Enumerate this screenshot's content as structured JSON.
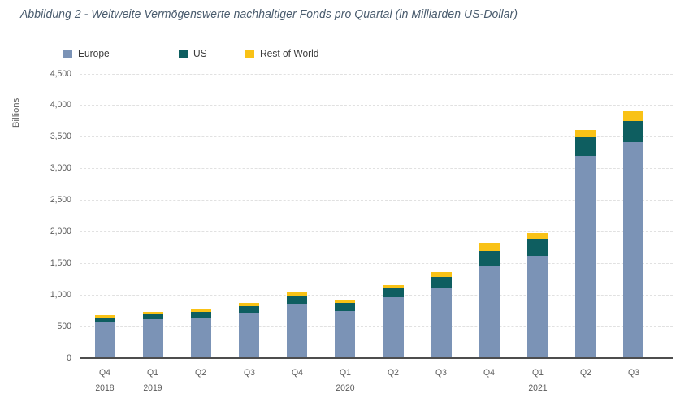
{
  "title": "Abbildung 2 - Weltweite Vermögenswerte nachhaltiger Fonds pro Quartal (in Milliarden US-Dollar)",
  "colors": {
    "europe": "#7B93B6",
    "us": "#0E5E60",
    "rest_of_world": "#F9C216",
    "title_text": "#4A5C6E",
    "axis_text": "#5A5A5A",
    "baseline": "#4D4D4D",
    "gridline": "#E1E1E1",
    "background": "#FFFFFF"
  },
  "chart_data": {
    "type": "bar",
    "stacked": true,
    "title": "Abbildung 2 - Weltweite Vermögenswerte nachhaltiger Fonds pro Quartal (in Milliarden US-Dollar)",
    "ylabel": "Billions",
    "xlabel": "",
    "ylim": [
      0,
      4500
    ],
    "ytick_step": 500,
    "ytick_labels": [
      "0",
      "500",
      "1,000",
      "1,500",
      "2,000",
      "2,500",
      "3,000",
      "3,500",
      "4,000",
      "4,500"
    ],
    "grid": "horizontal-dashed",
    "legend_position": "top-left",
    "categories": [
      "Q4",
      "Q1",
      "Q2",
      "Q3",
      "Q4",
      "Q1",
      "Q2",
      "Q3",
      "Q4",
      "Q1",
      "Q2",
      "Q3"
    ],
    "year_labels": [
      {
        "index": 0,
        "label": "2018"
      },
      {
        "index": 1,
        "label": "2019"
      },
      {
        "index": 5,
        "label": "2020"
      },
      {
        "index": 9,
        "label": "2021"
      }
    ],
    "series": [
      {
        "name": "Europe",
        "color": "#7B93B6",
        "values": [
          565,
          615,
          640,
          720,
          860,
          750,
          960,
          1110,
          1465,
          1625,
          3195,
          3420
        ]
      },
      {
        "name": "US",
        "color": "#0E5E60",
        "values": [
          80,
          80,
          95,
          105,
          125,
          120,
          145,
          170,
          235,
          265,
          300,
          330
        ]
      },
      {
        "name": "Rest of World",
        "color": "#F9C216",
        "values": [
          35,
          40,
          45,
          50,
          60,
          50,
          55,
          80,
          120,
          95,
          120,
          155
        ]
      }
    ],
    "totals": [
      680,
      735,
      780,
      875,
      1045,
      920,
      1160,
      1360,
      1820,
      1985,
      3615,
      3905
    ]
  }
}
